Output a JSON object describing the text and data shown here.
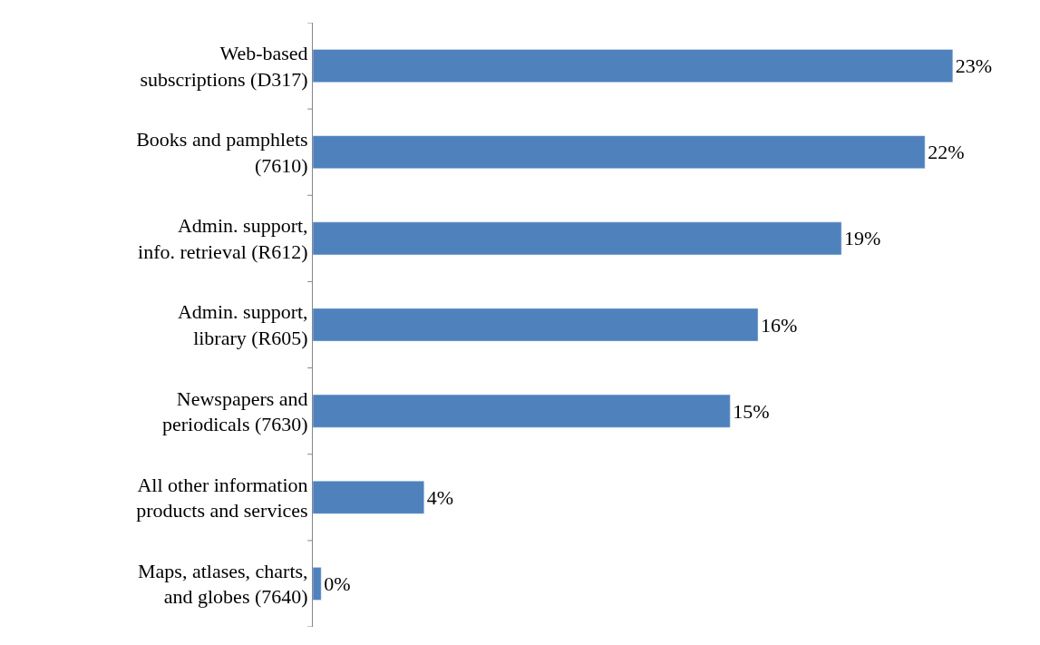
{
  "chart_data": {
    "type": "bar",
    "orientation": "horizontal",
    "categories": [
      "Web-based\nsubscriptions (D317)",
      "Books and pamphlets\n(7610)",
      "Admin. support,\ninfo. retrieval (R612)",
      "Admin. support,\nlibrary (R605)",
      "Newspapers and\nperiodicals (7630)",
      "All other information\nproducts and services",
      "Maps, atlases, charts,\nand globes (7640)"
    ],
    "values": [
      23,
      22,
      19,
      16,
      15,
      4,
      0.3
    ],
    "value_labels": [
      "23%",
      "22%",
      "19%",
      "16%",
      "15%",
      "4%",
      "0%"
    ],
    "color": "#4f81bd"
  }
}
